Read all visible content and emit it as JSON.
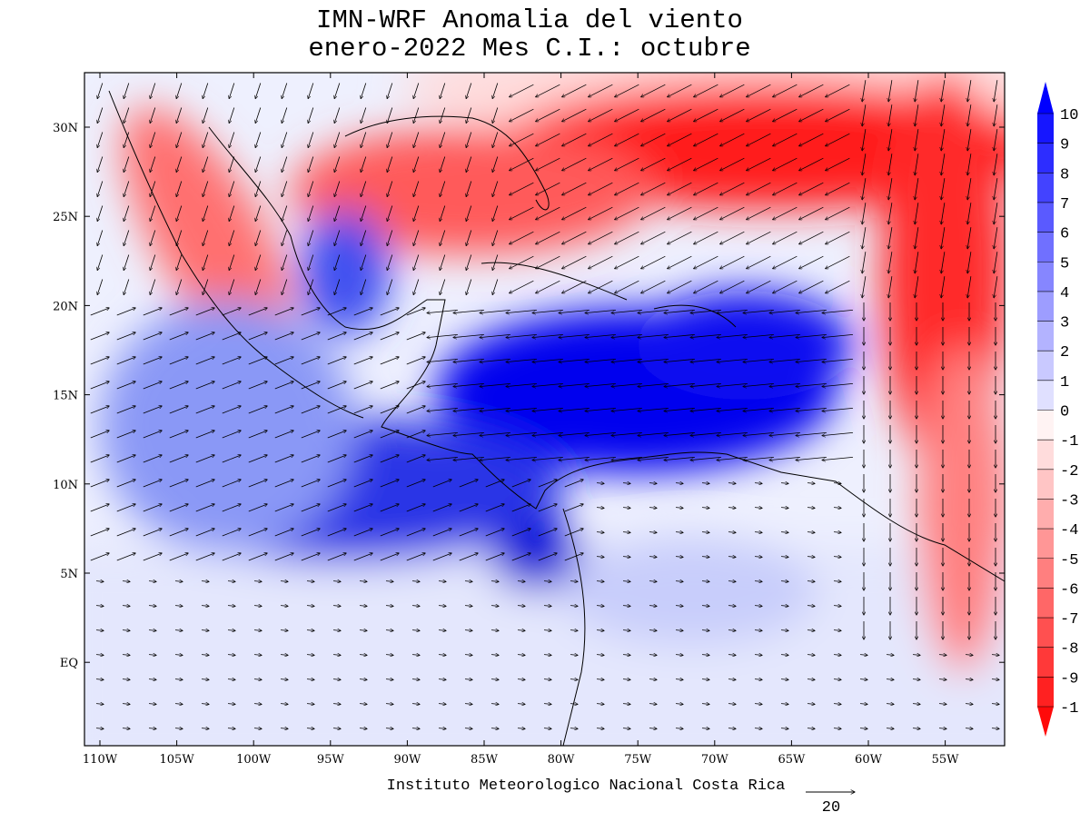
{
  "title": [
    "IMN-WRF Anomalia del viento",
    "enero-2022 Mes C.I.: octubre"
  ],
  "lon_labels": [
    "110W",
    "105W",
    "100W",
    "95W",
    "90W",
    "85W",
    "80W",
    "75W",
    "70W",
    "65W",
    "60W",
    "55W"
  ],
  "lat_labels": [
    "30N",
    "25N",
    "20N",
    "15N",
    "10N",
    "5N",
    "EQ"
  ],
  "colorbar_labels": [
    "10",
    "9",
    "8",
    "7",
    "6",
    "5",
    "4",
    "3",
    "2",
    "1",
    "0",
    "-1",
    "-2",
    "-3",
    "-4",
    "-5",
    "-6",
    "-7",
    "-8",
    "-9",
    "-1"
  ],
  "footer": "Instituto Meteorologico Nacional Costa Rica",
  "reference_vector": "20"
}
